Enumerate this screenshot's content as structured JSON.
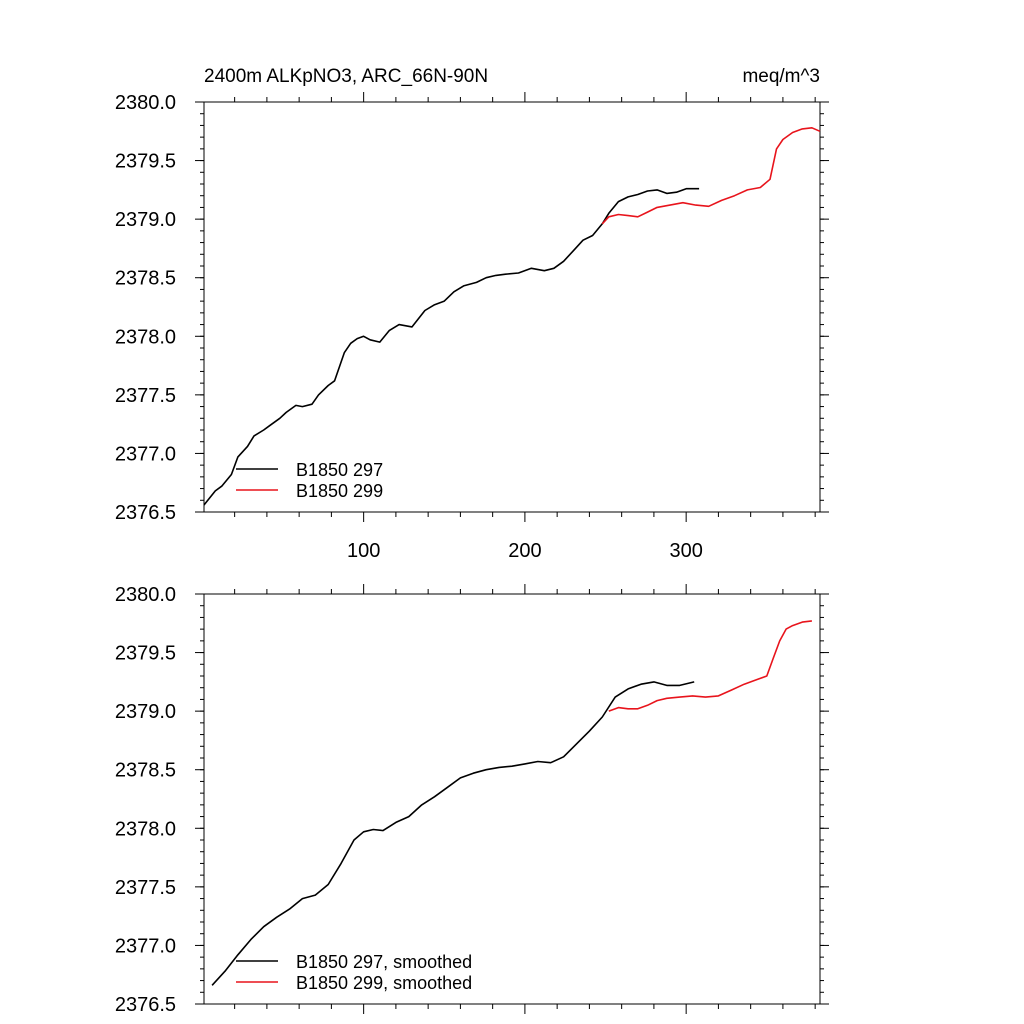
{
  "chart_data": [
    {
      "type": "line",
      "title_left": "2400m ALKpNO3, ARC_66N-90N",
      "title_right": "meq/m^3",
      "xlabel": "",
      "ylabel": "",
      "xlim": [
        1,
        383
      ],
      "ylim": [
        2376.5,
        2380.0
      ],
      "xticks": [
        100,
        200,
        300
      ],
      "xtick_labels": [
        "100",
        "200",
        "300"
      ],
      "yticks": [
        2376.5,
        2377.0,
        2377.5,
        2378.0,
        2378.5,
        2379.0,
        2379.5,
        2380.0
      ],
      "ytick_labels": [
        "2376.5",
        "2377.0",
        "2377.5",
        "2378.0",
        "2378.5",
        "2379.0",
        "2379.5",
        "2380.0"
      ],
      "legend_position": "bottom-left",
      "series": [
        {
          "name": "B1850 297",
          "color": "#000000",
          "x": [
            1,
            8,
            12,
            18,
            22,
            28,
            32,
            38,
            42,
            48,
            52,
            58,
            62,
            68,
            72,
            78,
            82,
            88,
            92,
            96,
            100,
            104,
            110,
            116,
            122,
            130,
            138,
            144,
            150,
            156,
            162,
            170,
            176,
            182,
            188,
            196,
            204,
            212,
            218,
            224,
            230,
            236,
            242,
            248,
            252,
            258,
            264,
            270,
            276,
            282,
            288,
            294,
            300,
            308
          ],
          "values": [
            2376.56,
            2376.68,
            2376.72,
            2376.82,
            2376.97,
            2377.06,
            2377.15,
            2377.2,
            2377.24,
            2377.3,
            2377.35,
            2377.41,
            2377.4,
            2377.42,
            2377.5,
            2377.58,
            2377.62,
            2377.86,
            2377.94,
            2377.98,
            2378.0,
            2377.97,
            2377.95,
            2378.05,
            2378.1,
            2378.08,
            2378.22,
            2378.27,
            2378.3,
            2378.38,
            2378.43,
            2378.46,
            2378.5,
            2378.52,
            2378.53,
            2378.54,
            2378.58,
            2378.56,
            2378.58,
            2378.64,
            2378.73,
            2378.82,
            2378.86,
            2378.96,
            2379.05,
            2379.15,
            2379.19,
            2379.21,
            2379.24,
            2379.25,
            2379.22,
            2379.23,
            2379.26,
            2379.26
          ]
        },
        {
          "name": "B1850 299",
          "color": "#e8141c",
          "x": [
            248,
            252,
            258,
            264,
            270,
            276,
            282,
            290,
            298,
            306,
            314,
            322,
            330,
            338,
            346,
            352,
            356,
            360,
            366,
            372,
            378,
            383
          ],
          "values": [
            2378.96,
            2379.02,
            2379.04,
            2379.03,
            2379.02,
            2379.06,
            2379.1,
            2379.12,
            2379.14,
            2379.12,
            2379.11,
            2379.16,
            2379.2,
            2379.25,
            2379.27,
            2379.34,
            2379.6,
            2379.68,
            2379.74,
            2379.77,
            2379.78,
            2379.75
          ]
        }
      ]
    },
    {
      "type": "line",
      "title_left": "",
      "title_right": "",
      "xlabel": "",
      "ylabel": "",
      "xlim": [
        1,
        383
      ],
      "ylim": [
        2376.5,
        2380.0
      ],
      "xticks": [
        100,
        200,
        300
      ],
      "xtick_labels": [],
      "yticks": [
        2376.5,
        2377.0,
        2377.5,
        2378.0,
        2378.5,
        2379.0,
        2379.5,
        2380.0
      ],
      "ytick_labels": [
        "2376.5",
        "2377.0",
        "2377.5",
        "2378.0",
        "2378.5",
        "2379.0",
        "2379.5",
        "2380.0"
      ],
      "legend_position": "bottom-left",
      "series": [
        {
          "name": "B1850 297, smoothed",
          "color": "#000000",
          "x": [
            6,
            14,
            22,
            30,
            38,
            46,
            54,
            62,
            70,
            78,
            86,
            94,
            100,
            106,
            112,
            120,
            128,
            136,
            144,
            152,
            160,
            168,
            176,
            184,
            192,
            200,
            208,
            216,
            224,
            232,
            240,
            248,
            256,
            264,
            272,
            280,
            288,
            296,
            305
          ],
          "values": [
            2376.66,
            2376.78,
            2376.92,
            2377.05,
            2377.16,
            2377.24,
            2377.31,
            2377.4,
            2377.43,
            2377.52,
            2377.7,
            2377.9,
            2377.97,
            2377.99,
            2377.98,
            2378.05,
            2378.1,
            2378.2,
            2378.27,
            2378.35,
            2378.43,
            2378.47,
            2378.5,
            2378.52,
            2378.53,
            2378.55,
            2378.57,
            2378.56,
            2378.61,
            2378.72,
            2378.83,
            2378.95,
            2379.12,
            2379.19,
            2379.23,
            2379.25,
            2379.22,
            2379.22,
            2379.25
          ]
        },
        {
          "name": "B1850 299, smoothed",
          "color": "#e8141c",
          "x": [
            252,
            258,
            264,
            270,
            276,
            282,
            288,
            296,
            304,
            312,
            320,
            328,
            336,
            344,
            350,
            354,
            358,
            362,
            366,
            372,
            378
          ],
          "values": [
            2379.0,
            2379.03,
            2379.02,
            2379.02,
            2379.05,
            2379.09,
            2379.11,
            2379.12,
            2379.13,
            2379.12,
            2379.13,
            2379.18,
            2379.23,
            2379.27,
            2379.3,
            2379.45,
            2379.6,
            2379.7,
            2379.73,
            2379.76,
            2379.77
          ]
        }
      ]
    }
  ]
}
